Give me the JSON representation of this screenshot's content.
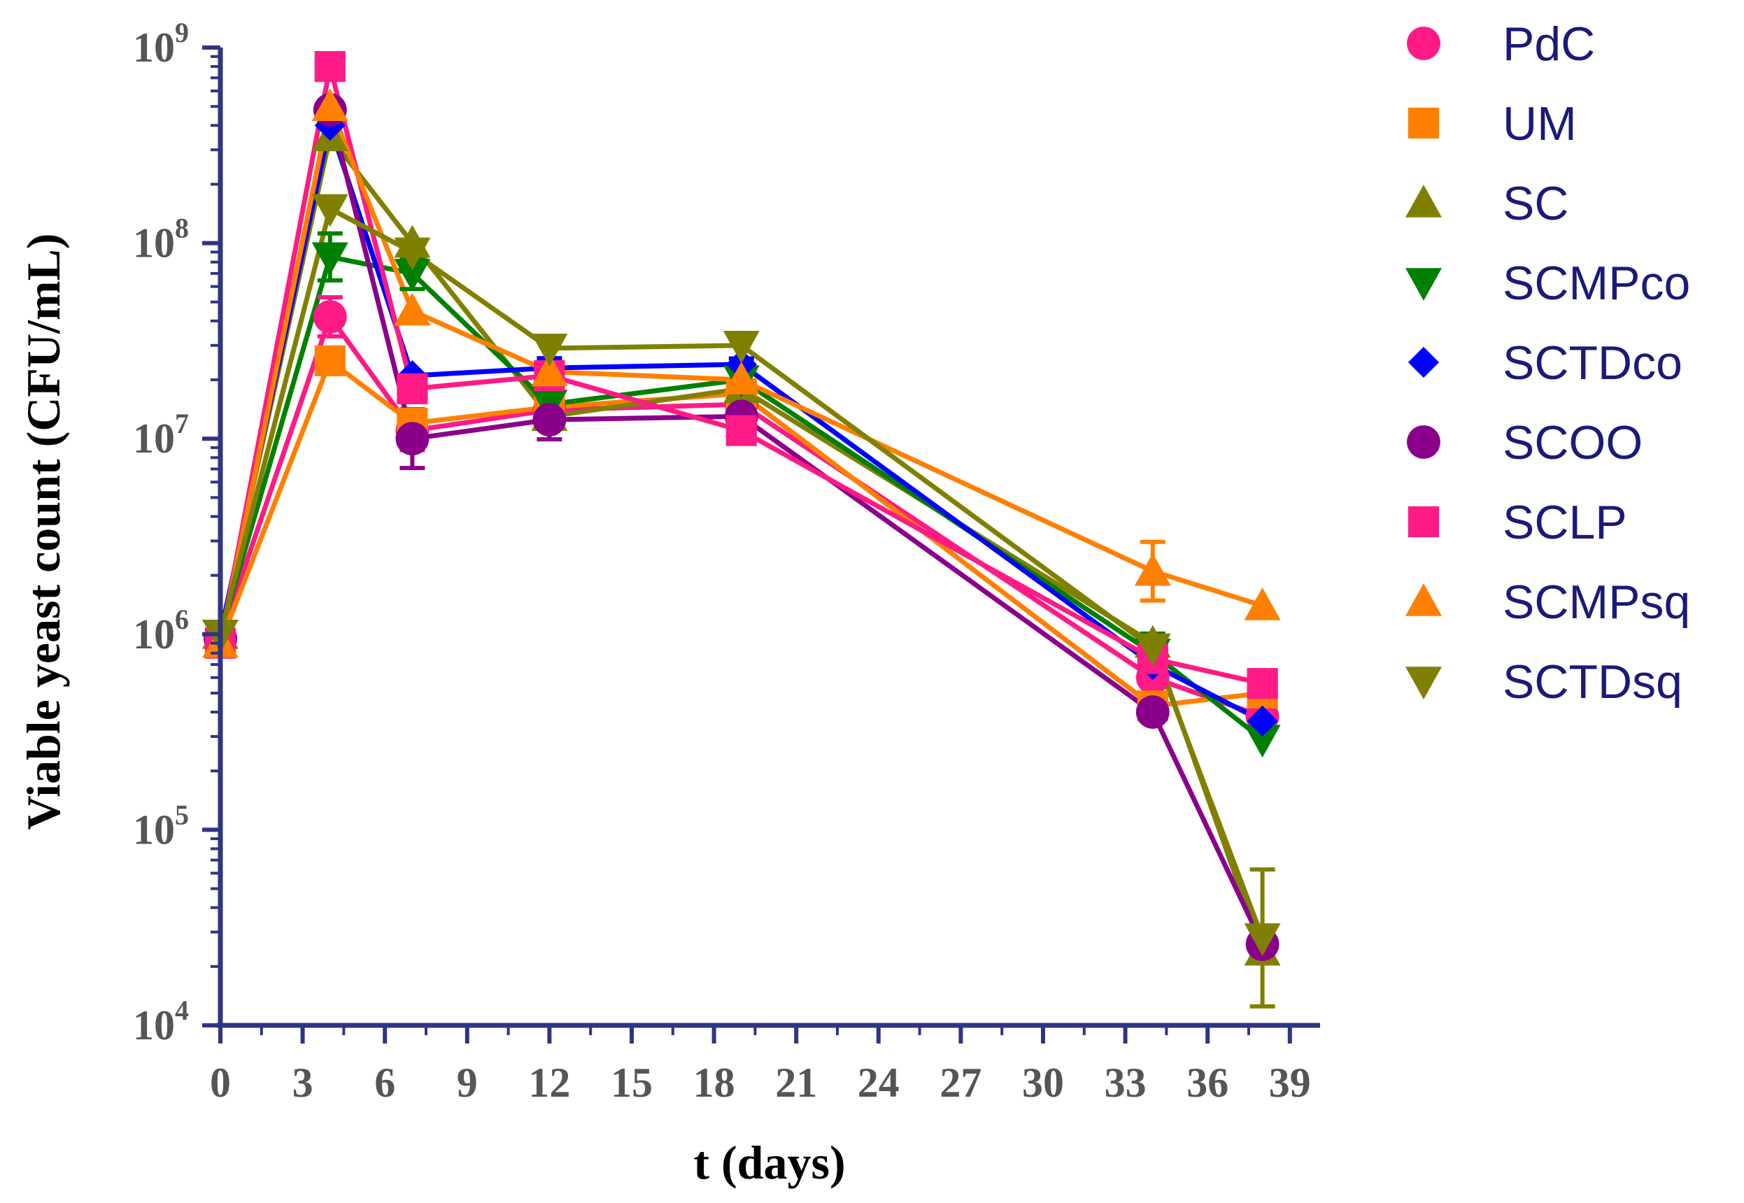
{
  "chart_data": {
    "type": "line",
    "title": "",
    "xlabel": "t (days)",
    "ylabel": "Viable yeast count (CFU/mL)",
    "xlim": [
      0,
      40
    ],
    "ylim": [
      10000,
      1000000000
    ],
    "yscale": "log",
    "x_ticks": [
      0,
      3,
      6,
      9,
      12,
      15,
      18,
      21,
      24,
      27,
      30,
      33,
      36,
      39
    ],
    "x_tick_labels": [
      "0",
      "3",
      "6",
      "9",
      "12",
      "15",
      "18",
      "21",
      "24",
      "27",
      "30",
      "33",
      "36",
      "39"
    ],
    "y_ticks": [
      {
        "value": 10000,
        "base": "10",
        "exp": "4"
      },
      {
        "value": 100000,
        "base": "10",
        "exp": "5"
      },
      {
        "value": 1000000,
        "base": "10",
        "exp": "6"
      },
      {
        "value": 10000000,
        "base": "10",
        "exp": "7"
      },
      {
        "value": 100000000,
        "base": "10",
        "exp": "8"
      },
      {
        "value": 1000000000,
        "base": "10",
        "exp": "9"
      }
    ],
    "axis_color": "#2e3585",
    "legend_position": "right",
    "x": [
      0,
      4,
      7,
      12,
      19,
      34,
      38
    ],
    "series": [
      {
        "name": "PdC",
        "color": "#ff1a85",
        "marker": "circle",
        "values": [
          950000,
          42000000,
          11000000,
          14000000,
          15000000,
          600000,
          380000
        ],
        "errors": [
          0,
          0.1,
          0.1,
          0,
          0,
          0,
          0
        ]
      },
      {
        "name": "UM",
        "color": "#ff8000",
        "marker": "square",
        "values": [
          900000,
          25000000,
          12000000,
          14500000,
          17000000,
          430000,
          500000
        ],
        "errors": [
          0,
          0,
          0.05,
          0,
          0.12,
          0,
          0
        ]
      },
      {
        "name": "SC",
        "color": "#808000",
        "marker": "triangle-up",
        "values": [
          1000000,
          350000000,
          100000000,
          13000000,
          18000000,
          900000,
          24000
        ],
        "errors": [
          0,
          0,
          0,
          0,
          0,
          0,
          0
        ]
      },
      {
        "name": "SCMPco",
        "color": "#008000",
        "marker": "triangle-down",
        "values": [
          1000000,
          85000000,
          70000000,
          15000000,
          20000000,
          800000,
          290000
        ],
        "errors": [
          0,
          0.12,
          0.08,
          0,
          0.05,
          0.1,
          0
        ]
      },
      {
        "name": "SCTDco",
        "color": "#0000ff",
        "marker": "diamond",
        "values": [
          1000000,
          400000000,
          21000000,
          23000000,
          24000000,
          700000,
          360000
        ],
        "errors": [
          0,
          0,
          0,
          0.05,
          0.03,
          0,
          0
        ]
      },
      {
        "name": "SCOO",
        "color": "#8b008b",
        "marker": "circle",
        "values": [
          950000,
          480000000,
          10000000,
          12500000,
          13000000,
          400000,
          26000
        ],
        "errors": [
          0,
          0,
          0.15,
          0.1,
          0,
          0,
          0
        ]
      },
      {
        "name": "SCLP",
        "color": "#ff1a85",
        "marker": "square",
        "values": [
          900000,
          800000000,
          18000000,
          21000000,
          11000000,
          750000,
          560000
        ],
        "errors": [
          0,
          0.05,
          0,
          0,
          0.06,
          0,
          0
        ]
      },
      {
        "name": "SCMPsq",
        "color": "#ff8000",
        "marker": "triangle-up",
        "values": [
          900000,
          500000000,
          45000000,
          22000000,
          20000000,
          2100000,
          1400000
        ],
        "errors": [
          0,
          0,
          0,
          0,
          0,
          0.15,
          0
        ]
      },
      {
        "name": "SCTDsq",
        "color": "#808000",
        "marker": "triangle-down",
        "values": [
          1000000,
          150000000,
          90000000,
          29000000,
          30000000,
          850000,
          28000
        ],
        "errors": [
          0,
          0,
          0,
          0,
          0,
          0,
          0.35
        ]
      }
    ]
  }
}
